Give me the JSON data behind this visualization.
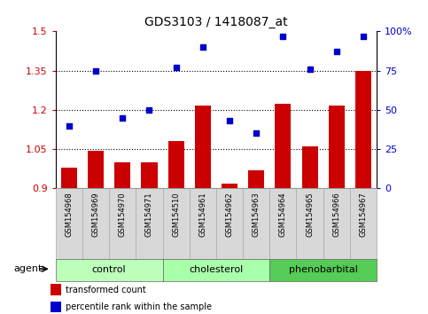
{
  "title": "GDS3103 / 1418087_at",
  "samples": [
    "GSM154968",
    "GSM154969",
    "GSM154970",
    "GSM154971",
    "GSM154510",
    "GSM154961",
    "GSM154962",
    "GSM154963",
    "GSM154964",
    "GSM154965",
    "GSM154966",
    "GSM154967"
  ],
  "bar_values": [
    0.98,
    1.045,
    1.0,
    1.0,
    1.08,
    1.215,
    0.92,
    0.97,
    1.225,
    1.06,
    1.215,
    1.35
  ],
  "scatter_values_pct": [
    40,
    75,
    45,
    50,
    77,
    90,
    43,
    35,
    97,
    76,
    87,
    97
  ],
  "bar_color": "#cc0000",
  "scatter_color": "#0000cc",
  "ylim_left": [
    0.9,
    1.5
  ],
  "ylim_right": [
    0,
    100
  ],
  "yticks_left": [
    0.9,
    1.05,
    1.2,
    1.35,
    1.5
  ],
  "yticks_right": [
    0,
    25,
    50,
    75,
    100
  ],
  "ytick_labels_right": [
    "0",
    "25",
    "50",
    "75",
    "100%"
  ],
  "groups": [
    {
      "label": "control",
      "start": 0,
      "end": 3,
      "color": "#bbffbb"
    },
    {
      "label": "cholesterol",
      "start": 4,
      "end": 7,
      "color": "#aaffaa"
    },
    {
      "label": "phenobarbital",
      "start": 8,
      "end": 11,
      "color": "#55cc55"
    }
  ],
  "agent_label": "agent",
  "legend_bar_label": "transformed count",
  "legend_scatter_label": "percentile rank within the sample",
  "bar_base": 0.9,
  "dotted_lines": [
    1.05,
    1.2,
    1.35
  ],
  "tick_label_color_left": "#cc0000",
  "tick_label_color_right": "#0000cc",
  "sample_box_color": "#d8d8d8",
  "sample_box_edge_color": "#aaaaaa"
}
